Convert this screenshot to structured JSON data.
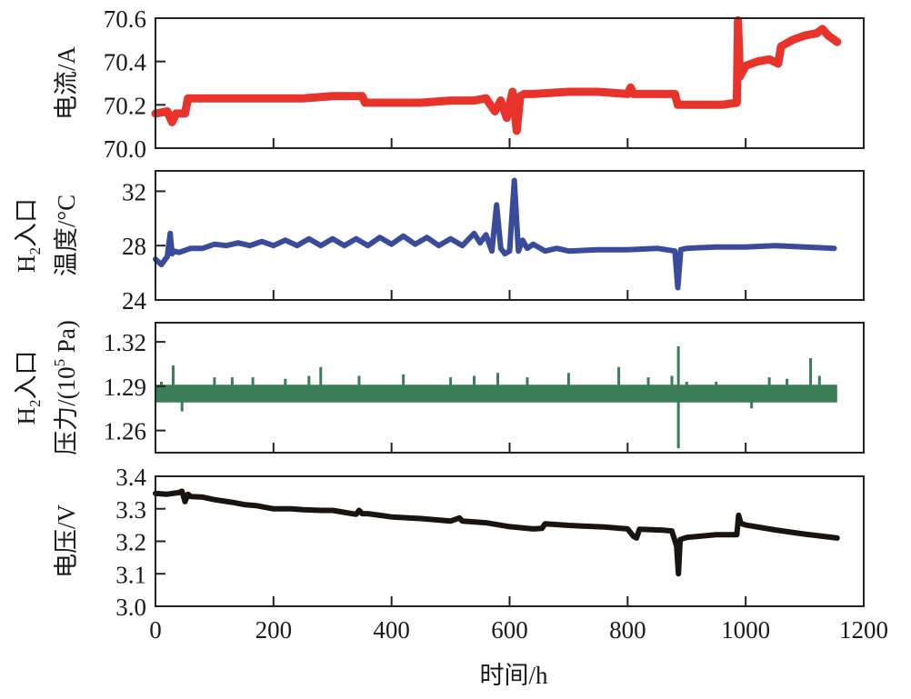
{
  "chart_data": [
    {
      "type": "line",
      "ylabel": "电流/A",
      "yticks": [
        "70.0",
        "70.2",
        "70.4",
        "70.6"
      ],
      "ylim": [
        70.0,
        70.6
      ],
      "xlim": [
        0,
        1200
      ],
      "color": "#e8332a",
      "series": [
        {
          "name": "电流",
          "x": [
            0,
            20,
            28,
            35,
            50,
            55,
            100,
            150,
            200,
            250,
            300,
            350,
            355,
            400,
            450,
            500,
            540,
            560,
            575,
            585,
            595,
            605,
            612,
            618,
            625,
            640,
            700,
            750,
            800,
            805,
            810,
            850,
            880,
            885,
            920,
            960,
            985,
            987,
            990,
            1000,
            1020,
            1040,
            1055,
            1060,
            1080,
            1100,
            1120,
            1130,
            1140,
            1150,
            1155
          ],
          "y": [
            70.16,
            70.17,
            70.12,
            70.16,
            70.16,
            70.23,
            70.23,
            70.23,
            70.23,
            70.23,
            70.24,
            70.24,
            70.21,
            70.21,
            70.21,
            70.22,
            70.22,
            70.23,
            70.17,
            70.22,
            70.14,
            70.26,
            70.08,
            70.24,
            70.25,
            70.25,
            70.26,
            70.26,
            70.25,
            70.28,
            70.25,
            70.25,
            70.25,
            70.2,
            70.2,
            70.2,
            70.21,
            70.59,
            70.33,
            70.38,
            70.4,
            70.41,
            70.39,
            70.47,
            70.5,
            70.52,
            70.53,
            70.55,
            70.52,
            70.5,
            70.49
          ]
        }
      ]
    },
    {
      "type": "line",
      "ylabel": "H₂入口 温度/°C",
      "ylabel_lines": [
        "H",
        "2",
        "入口",
        "温度/°C"
      ],
      "yticks": [
        "24",
        "28",
        "32"
      ],
      "ylim": [
        24,
        33.5
      ],
      "xlim": [
        0,
        1200
      ],
      "color": "#3b4b9c",
      "series": [
        {
          "name": "H2入口温度",
          "x": [
            0,
            10,
            20,
            25,
            28,
            32,
            40,
            60,
            80,
            100,
            120,
            140,
            160,
            180,
            200,
            220,
            240,
            260,
            280,
            300,
            320,
            340,
            360,
            380,
            400,
            420,
            440,
            460,
            480,
            500,
            520,
            540,
            550,
            560,
            570,
            578,
            585,
            592,
            600,
            608,
            615,
            622,
            630,
            640,
            660,
            680,
            700,
            750,
            800,
            850,
            880,
            885,
            890,
            900,
            950,
            1000,
            1050,
            1100,
            1150
          ],
          "y": [
            27.0,
            26.6,
            27.2,
            28.9,
            27.4,
            27.6,
            27.5,
            27.8,
            27.8,
            28.1,
            28.0,
            28.2,
            28.0,
            28.3,
            28.0,
            28.4,
            28.0,
            28.5,
            28.0,
            28.5,
            28.0,
            28.5,
            28.0,
            28.6,
            28.1,
            28.7,
            28.1,
            28.6,
            28.0,
            28.5,
            28.0,
            28.9,
            28.2,
            28.8,
            27.6,
            31.0,
            27.8,
            27.4,
            27.6,
            32.8,
            27.6,
            28.4,
            27.8,
            28.1,
            27.6,
            27.8,
            27.6,
            27.7,
            27.7,
            27.8,
            27.6,
            24.9,
            27.7,
            27.8,
            27.9,
            27.9,
            28.0,
            27.9,
            27.8
          ]
        }
      ]
    },
    {
      "type": "line",
      "ylabel": "H₂入口 压力/(10⁵ Pa)",
      "ylabel_lines": [
        "H",
        "2",
        "入口",
        "压力/(10",
        "5",
        " Pa)"
      ],
      "yticks": [
        "1.26",
        "1.29",
        "1.32"
      ],
      "ylim": [
        1.245,
        1.333
      ],
      "xlim": [
        0,
        1200
      ],
      "color": "#3a7d56",
      "band": {
        "low": 1.279,
        "high": 1.291,
        "x_start": 0,
        "x_end": 1155
      },
      "spikes": [
        {
          "x": 10,
          "y": 1.293
        },
        {
          "x": 30,
          "y": 1.304
        },
        {
          "x": 45,
          "y": 1.273
        },
        {
          "x": 100,
          "y": 1.296
        },
        {
          "x": 130,
          "y": 1.296
        },
        {
          "x": 165,
          "y": 1.296
        },
        {
          "x": 220,
          "y": 1.295
        },
        {
          "x": 260,
          "y": 1.297
        },
        {
          "x": 280,
          "y": 1.303
        },
        {
          "x": 345,
          "y": 1.297
        },
        {
          "x": 420,
          "y": 1.298
        },
        {
          "x": 500,
          "y": 1.296
        },
        {
          "x": 540,
          "y": 1.297
        },
        {
          "x": 580,
          "y": 1.299
        },
        {
          "x": 630,
          "y": 1.296
        },
        {
          "x": 700,
          "y": 1.299
        },
        {
          "x": 785,
          "y": 1.303
        },
        {
          "x": 835,
          "y": 1.296
        },
        {
          "x": 875,
          "y": 1.297
        },
        {
          "x": 886,
          "y": 1.317
        },
        {
          "x": 886,
          "y": 1.248
        },
        {
          "x": 900,
          "y": 1.293
        },
        {
          "x": 950,
          "y": 1.293
        },
        {
          "x": 1010,
          "y": 1.275
        },
        {
          "x": 1040,
          "y": 1.296
        },
        {
          "x": 1070,
          "y": 1.295
        },
        {
          "x": 1110,
          "y": 1.309
        },
        {
          "x": 1125,
          "y": 1.297
        }
      ]
    },
    {
      "type": "line",
      "ylabel": "电压/V",
      "yticks": [
        "3.0",
        "3.1",
        "3.2",
        "3.3",
        "3.4"
      ],
      "ylim": [
        3.0,
        3.4
      ],
      "xlim": [
        0,
        1200
      ],
      "xticks": [
        "0",
        "200",
        "400",
        "600",
        "800",
        "1000",
        "1200"
      ],
      "xlabel": "时间/h",
      "color": "#1a1410",
      "series": [
        {
          "name": "电压",
          "x": [
            0,
            20,
            40,
            45,
            50,
            55,
            60,
            80,
            100,
            130,
            150,
            170,
            200,
            230,
            250,
            280,
            300,
            340,
            345,
            350,
            360,
            380,
            400,
            450,
            500,
            515,
            520,
            560,
            600,
            640,
            655,
            660,
            700,
            760,
            800,
            810,
            815,
            820,
            860,
            875,
            883,
            886,
            889,
            900,
            950,
            985,
            988,
            992,
            1000,
            1050,
            1100,
            1155
          ],
          "y": [
            3.347,
            3.345,
            3.35,
            3.354,
            3.322,
            3.345,
            3.338,
            3.336,
            3.328,
            3.32,
            3.313,
            3.31,
            3.3,
            3.3,
            3.297,
            3.295,
            3.295,
            3.283,
            3.295,
            3.285,
            3.285,
            3.28,
            3.275,
            3.27,
            3.262,
            3.272,
            3.262,
            3.257,
            3.245,
            3.238,
            3.24,
            3.254,
            3.249,
            3.244,
            3.238,
            3.215,
            3.21,
            3.237,
            3.234,
            3.232,
            3.185,
            3.1,
            3.205,
            3.212,
            3.22,
            3.22,
            3.28,
            3.255,
            3.25,
            3.235,
            3.222,
            3.21
          ]
        }
      ]
    }
  ]
}
